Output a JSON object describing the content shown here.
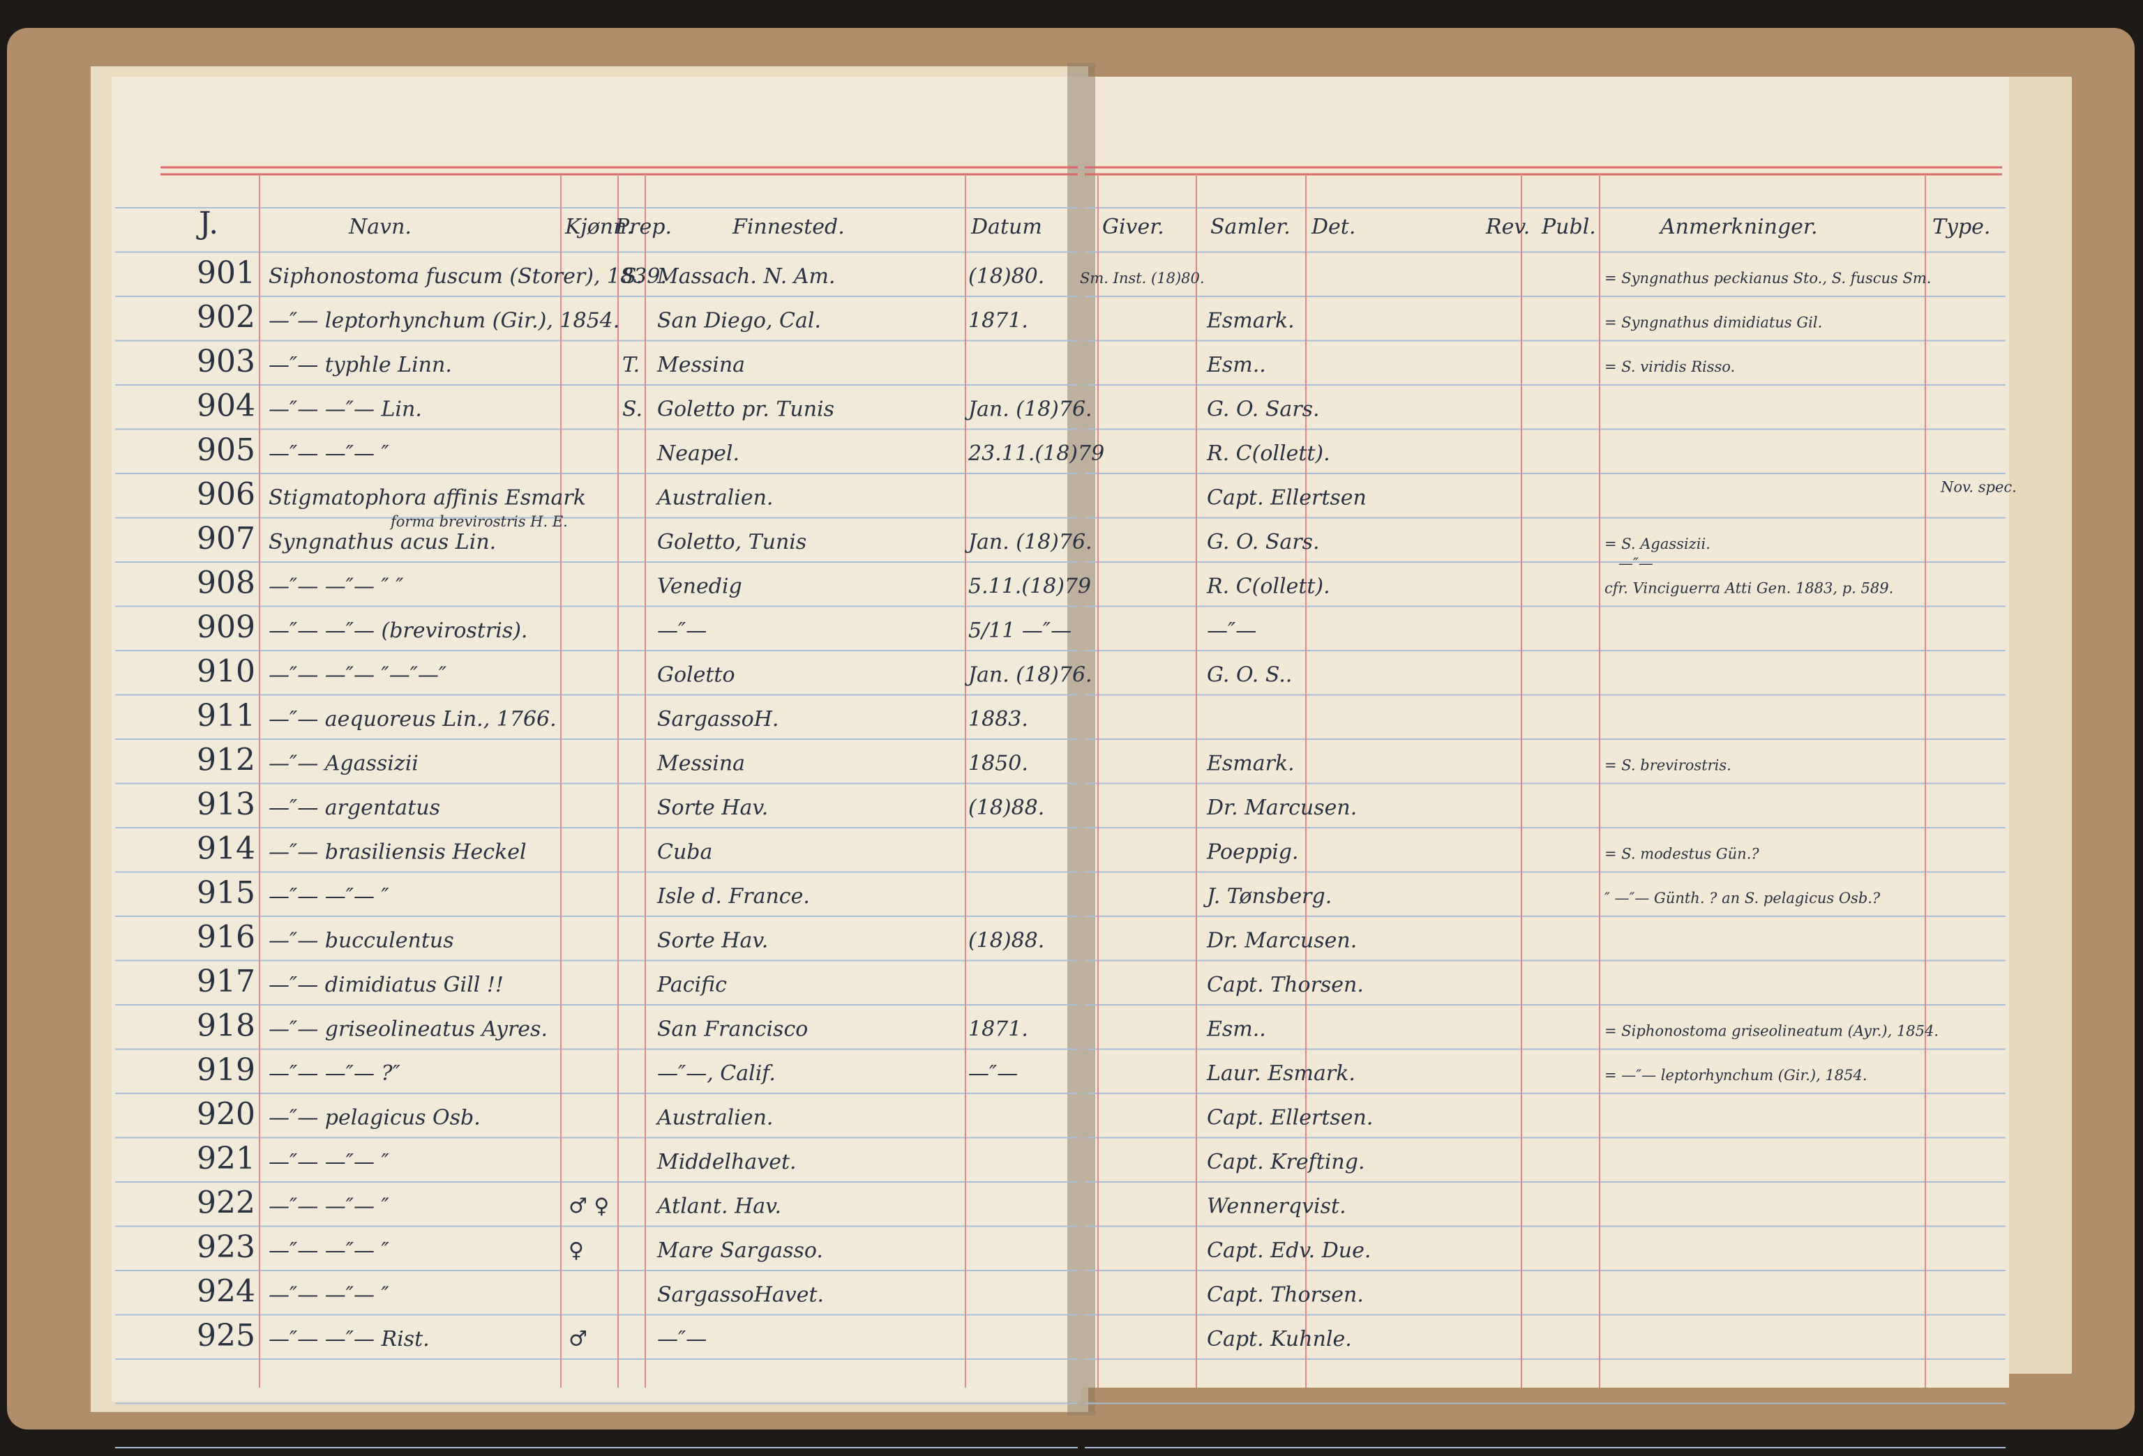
{
  "headers": {
    "number": "J.",
    "name": "Navn.",
    "kjonn": "Kjønn.",
    "prep": "Prep.",
    "finnested": "Finnested.",
    "datum": "Datum",
    "giver": "Giver.",
    "samler": "Samler.",
    "det": "Det.",
    "rev": "Rev.",
    "publ": "Publ.",
    "anm": "Anmerkninger.",
    "type": "Type."
  },
  "rows": [
    {
      "number": "901",
      "name": "Siphonostoma fuscum (Storer), 1839.",
      "prep": "S.",
      "finnested": "Massach. N. Am.",
      "datum": "(18)80.",
      "giver": "Sm. Inst. (18)80.",
      "anm": "= Syngnathus peckianus Sto., S. fuscus Sm."
    },
    {
      "number": "902",
      "name": "—″— leptorhynchum (Gir.), 1854.",
      "finnested": "San Diego, Cal.",
      "datum": "1871.",
      "samler": "Esmark.",
      "anm": "= Syngnathus dimidiatus Gil."
    },
    {
      "number": "903",
      "name": "—″— typhle Linn.",
      "prep": "T.",
      "finnested": "Messina",
      "samler": "Esm..",
      "anm": "= S. viridis Risso."
    },
    {
      "number": "904",
      "name": "—″— —″— Lin.",
      "prep": "S.",
      "finnested": "Goletto pr. Tunis",
      "datum": "Jan. (18)76.",
      "samler": "G. O. Sars."
    },
    {
      "number": "905",
      "name": "—″— —″— ″",
      "finnested": "Neapel.",
      "datum": "23.11.(18)79",
      "samler": "R. C(ollett)."
    },
    {
      "number": "906",
      "name": "Stigmatophora affinis Esmark",
      "finnested": "Australien.",
      "samler": "Capt. Ellertsen",
      "type": "Nov. spec."
    },
    {
      "number": "907",
      "name": "Syngnathus acus Lin.",
      "name_note": "forma brevirostris H. E.",
      "finnested": "Goletto, Tunis",
      "datum": "Jan. (18)76.",
      "samler": "G. O. Sars.",
      "anm": "= S. Agassizii.",
      "anm2": "—″—"
    },
    {
      "number": "908",
      "name": "—″— —″— ″ ″",
      "finnested": "Venedig",
      "datum": "5.11.(18)79",
      "samler": "R. C(ollett).",
      "anm": "cfr. Vinciguerra Atti Gen. 1883, p. 589."
    },
    {
      "number": "909",
      "name": "—″— —″— (brevirostris).",
      "finnested": "—″—",
      "datum": "5/11 —″—",
      "samler": "—″—"
    },
    {
      "number": "910",
      "name": "—″— —″— ″—″—″",
      "finnested": "Goletto",
      "datum": "Jan. (18)76.",
      "samler": "G. O. S.."
    },
    {
      "number": "911",
      "name": "—″— aequoreus Lin., 1766.",
      "finnested": "SargassoH.",
      "datum": "1883."
    },
    {
      "number": "912",
      "name": "—″— Agassizii",
      "finnested": "Messina",
      "datum": "1850.",
      "samler": "Esmark.",
      "anm": "= S. brevirostris."
    },
    {
      "number": "913",
      "name": "—″— argentatus",
      "finnested": "Sorte Hav.",
      "datum": "(18)88.",
      "samler": "Dr. Marcusen."
    },
    {
      "number": "914",
      "name": "—″— brasiliensis Heckel",
      "finnested": "Cuba",
      "samler": "Poeppig.",
      "anm": "= S. modestus Gün.?"
    },
    {
      "number": "915",
      "name": "—″— —″— ″",
      "finnested": "Isle d. France.",
      "samler": "J. Tønsberg.",
      "anm": "″ —″— Günth. ? an S. pelagicus Osb.?"
    },
    {
      "number": "916",
      "name": "—″— bucculentus",
      "finnested": "Sorte Hav.",
      "datum": "(18)88.",
      "samler": "Dr. Marcusen."
    },
    {
      "number": "917",
      "name": "—″— dimidiatus Gill !!",
      "finnested": "Pacific",
      "samler": "Capt. Thorsen."
    },
    {
      "number": "918",
      "name": "—″— griseolineatus Ayres.",
      "finnested": "San Francisco",
      "datum": "1871.",
      "samler": "Esm..",
      "anm": "= Siphonostoma griseolineatum (Ayr.), 1854."
    },
    {
      "number": "919",
      "name": "—″— —″— ?″",
      "finnested": "—″—, Calif.",
      "datum": "—″—",
      "samler": "Laur. Esmark.",
      "anm": "= —″— leptorhynchum (Gir.), 1854."
    },
    {
      "number": "920",
      "name": "—″— pelagicus Osb.",
      "finnested": "Australien.",
      "samler": "Capt. Ellertsen."
    },
    {
      "number": "921",
      "name": "—″— —″— ″",
      "finnested": "Middelhavet.",
      "samler": "Capt. Krefting."
    },
    {
      "number": "922",
      "name": "—″— —″— ″",
      "kjonn": "♂ ♀",
      "finnested": "Atlant. Hav.",
      "samler": "Wennerqvist."
    },
    {
      "number": "923",
      "name": "—″— —″— ″",
      "kjonn": "♀",
      "finnested": "Mare Sargasso.",
      "samler": "Capt. Edv. Due."
    },
    {
      "number": "924",
      "name": "—″— —″— ″",
      "finnested": "SargassoHavet.",
      "samler": "Capt. Thorsen."
    },
    {
      "number": "925",
      "name": "—″— —″— Rist.",
      "kjonn": "♂",
      "finnested": "—″—",
      "samler": "Capt. Kuhnle."
    }
  ]
}
